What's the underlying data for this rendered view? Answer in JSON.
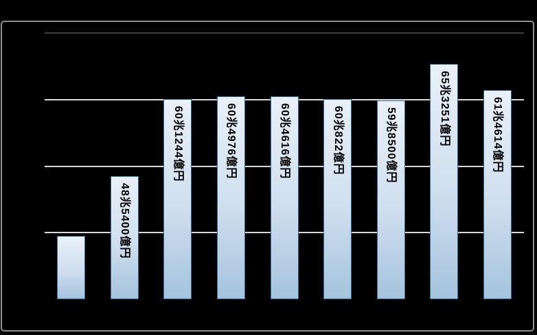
{
  "window": {
    "background_color": "#000000"
  },
  "chart": {
    "frame": {
      "border_color": "#8f8f8f"
    },
    "plot": {
      "background_color": "#000000",
      "gridline_color": "#d9d9d9",
      "top_gridline_color": "#404040"
    },
    "bar_style": {
      "fill_top": "#e9f0f8",
      "fill_mid": "#cfdeee",
      "fill_bottom": "#a5c3dd",
      "border_color": "#336b93",
      "label_color": "#000000"
    }
  },
  "chart_data": {
    "type": "bar",
    "title": "",
    "xlabel": "",
    "ylabel": "",
    "unit": "trillion yen (兆円)",
    "legend": "none",
    "axis": {
      "ymin": 30,
      "ymax": 70,
      "gridline_step": 10,
      "tick_labels_visible": false,
      "category_labels_visible": false
    },
    "bars": [
      {
        "label": "",
        "value": 39.5
      },
      {
        "label": "48兆5400億円",
        "value": 48.54
      },
      {
        "label": "60兆1244億円",
        "value": 60.1244
      },
      {
        "label": "60兆4976億円",
        "value": 60.4976
      },
      {
        "label": "60兆4616億円",
        "value": 60.4616
      },
      {
        "label": "60兆822億円",
        "value": 60.0822
      },
      {
        "label": "59兆8500億円",
        "value": 59.85
      },
      {
        "label": "65兆3251億円",
        "value": 65.3251
      },
      {
        "label": "61兆4614億円",
        "value": 61.4614
      }
    ]
  }
}
